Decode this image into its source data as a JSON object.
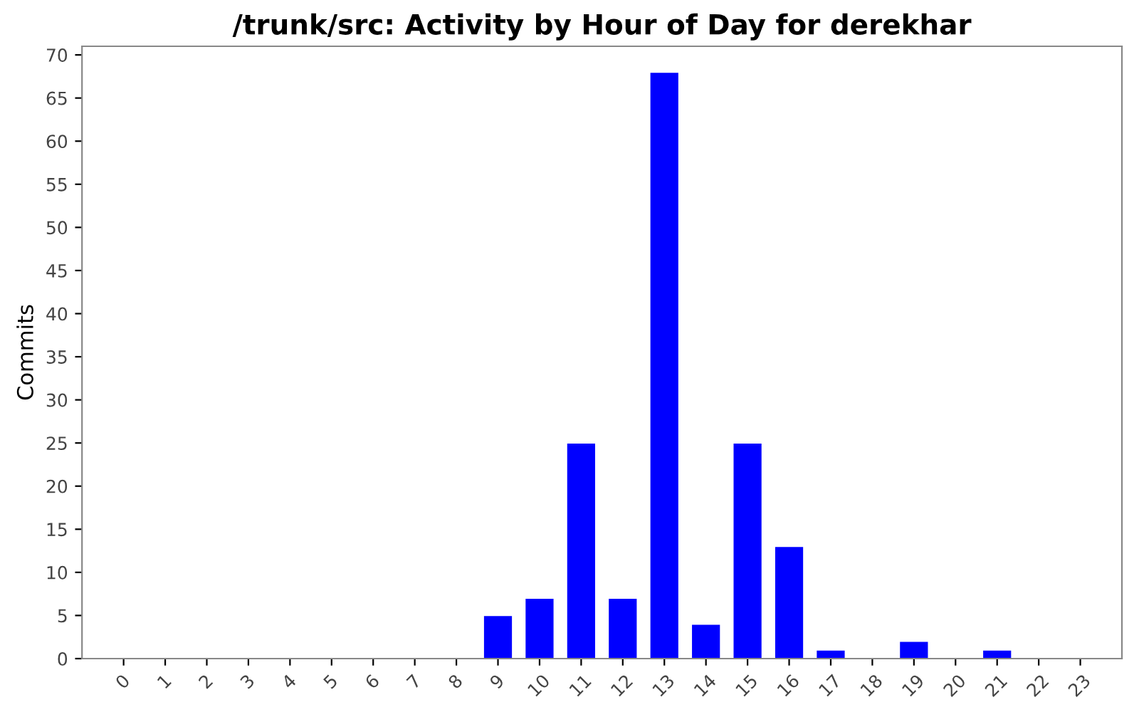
{
  "chart_data": {
    "type": "bar",
    "title": "/trunk/src: Activity by Hour of Day for derekhar",
    "ylabel": "Commits",
    "categories": [
      "0",
      "1",
      "2",
      "3",
      "4",
      "5",
      "6",
      "7",
      "8",
      "9",
      "10",
      "11",
      "12",
      "13",
      "14",
      "15",
      "16",
      "17",
      "18",
      "19",
      "20",
      "21",
      "22",
      "23"
    ],
    "values": [
      0,
      0,
      0,
      0,
      0,
      0,
      0,
      0,
      0,
      5,
      7,
      25,
      7,
      68,
      4,
      25,
      13,
      1,
      0,
      2,
      0,
      1,
      0,
      0
    ],
    "color": "#0000ff",
    "ylim": [
      0,
      71
    ],
    "yticks": [
      0,
      5,
      10,
      15,
      20,
      25,
      30,
      35,
      40,
      45,
      50,
      55,
      60,
      65,
      70
    ],
    "grid": false,
    "legend": false
  }
}
